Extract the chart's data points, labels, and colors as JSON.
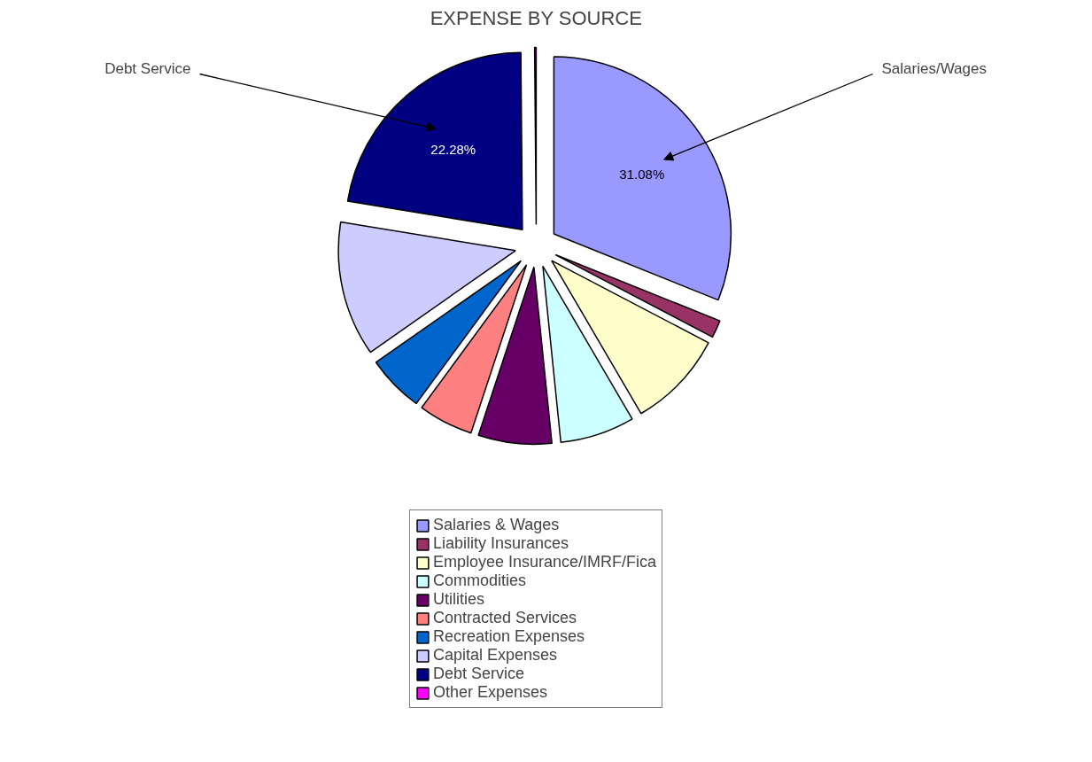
{
  "chart_data": {
    "type": "pie",
    "title": "EXPENSE BY SOURCE",
    "categories": [
      "Salaries & Wages",
      "Liability Insurances",
      "Employee Insurance/IMRF/Fica",
      "Commodities",
      "Utilities",
      "Contracted Services",
      "Recreation Expenses",
      "Capital Expenses",
      "Debt Service",
      "Other Expenses"
    ],
    "values": [
      31.08,
      1.6,
      8.9,
      6.8,
      6.7,
      5.0,
      5.2,
      12.3,
      22.28,
      0.14
    ],
    "colors": [
      "#9999ff",
      "#993366",
      "#ffffcc",
      "#ccffff",
      "#660066",
      "#ff8080",
      "#0066cc",
      "#ccccff",
      "#000080",
      "#ff00ff"
    ],
    "value_labels": [
      "31.08%",
      null,
      null,
      null,
      null,
      null,
      null,
      null,
      "22.28%",
      null
    ],
    "annotations": [
      "Salaries/Wages",
      "Debt Service"
    ],
    "legend": "bottom"
  }
}
